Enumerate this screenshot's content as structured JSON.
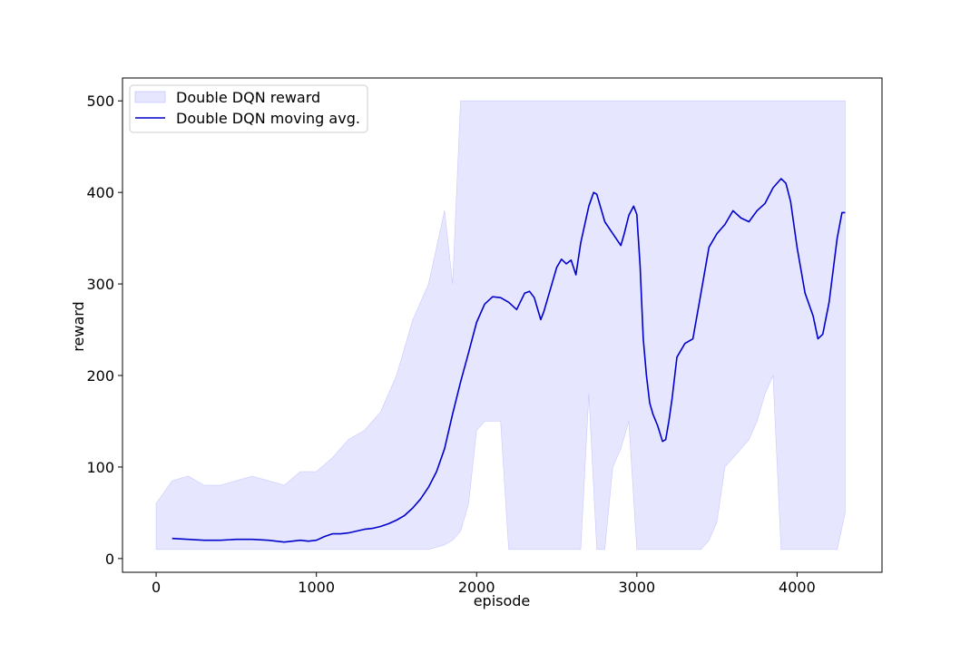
{
  "chart_data": {
    "type": "line",
    "title": "",
    "xlabel": "episode",
    "ylabel": "reward",
    "xlim": [
      -210,
      4530
    ],
    "ylim": [
      -15,
      525
    ],
    "x_ticks": [
      0,
      1000,
      2000,
      3000,
      4000
    ],
    "y_ticks": [
      0,
      100,
      200,
      300,
      400,
      500
    ],
    "grid": false,
    "legend_placement": "top-left",
    "colors": {
      "band": "#e6e6ff",
      "band_edge": "#c8c8ff",
      "line": "#0000cc"
    },
    "series": [
      {
        "name": "Double DQN reward",
        "kind": "band",
        "x": [
          0,
          100,
          200,
          300,
          400,
          500,
          600,
          700,
          800,
          900,
          1000,
          1100,
          1200,
          1300,
          1400,
          1500,
          1600,
          1700,
          1800,
          1850,
          1900,
          1950,
          2000,
          2050,
          2100,
          2150,
          2200,
          2250,
          2300,
          2350,
          2400,
          2450,
          2500,
          2550,
          2600,
          2650,
          2700,
          2750,
          2800,
          2850,
          2900,
          2950,
          3000,
          3050,
          3100,
          3150,
          3200,
          3250,
          3300,
          3350,
          3400,
          3450,
          3500,
          3550,
          3600,
          3650,
          3700,
          3750,
          3800,
          3850,
          3900,
          3950,
          4000,
          4050,
          4100,
          4150,
          4200,
          4250,
          4300
        ],
        "low": [
          10,
          10,
          10,
          10,
          10,
          10,
          10,
          10,
          10,
          10,
          10,
          10,
          10,
          10,
          10,
          10,
          10,
          10,
          15,
          20,
          30,
          60,
          140,
          150,
          150,
          150,
          10,
          10,
          10,
          10,
          10,
          10,
          10,
          10,
          10,
          10,
          180,
          10,
          10,
          100,
          120,
          150,
          10,
          10,
          10,
          10,
          10,
          10,
          10,
          10,
          10,
          20,
          40,
          100,
          110,
          120,
          130,
          150,
          180,
          200,
          10,
          10,
          10,
          10,
          10,
          10,
          10,
          10,
          50
        ],
        "high": [
          60,
          85,
          90,
          80,
          80,
          85,
          90,
          85,
          80,
          95,
          95,
          110,
          130,
          140,
          160,
          200,
          260,
          300,
          380,
          300,
          500,
          500,
          500,
          500,
          500,
          500,
          500,
          500,
          500,
          500,
          500,
          500,
          500,
          500,
          500,
          500,
          500,
          500,
          500,
          500,
          500,
          500,
          500,
          500,
          500,
          500,
          500,
          500,
          500,
          500,
          500,
          500,
          500,
          500,
          500,
          500,
          500,
          500,
          500,
          500,
          500,
          500,
          500,
          500,
          500,
          500,
          500,
          500,
          500
        ]
      },
      {
        "name": "Double DQN moving avg.",
        "kind": "line",
        "x": [
          100,
          200,
          300,
          400,
          500,
          600,
          700,
          800,
          900,
          950,
          1000,
          1050,
          1100,
          1150,
          1200,
          1250,
          1300,
          1350,
          1400,
          1450,
          1500,
          1550,
          1600,
          1650,
          1700,
          1750,
          1800,
          1850,
          1900,
          1950,
          2000,
          2050,
          2100,
          2150,
          2200,
          2250,
          2300,
          2330,
          2360,
          2400,
          2420,
          2450,
          2500,
          2530,
          2560,
          2590,
          2620,
          2650,
          2700,
          2730,
          2750,
          2800,
          2850,
          2900,
          2920,
          2950,
          2980,
          3000,
          3020,
          3040,
          3060,
          3080,
          3100,
          3130,
          3160,
          3180,
          3200,
          3220,
          3250,
          3300,
          3350,
          3400,
          3450,
          3500,
          3550,
          3600,
          3650,
          3700,
          3750,
          3800,
          3850,
          3900,
          3930,
          3960,
          4000,
          4050,
          4100,
          4130,
          4160,
          4200,
          4250,
          4280,
          4300
        ],
        "values": [
          22,
          21,
          20,
          20,
          21,
          21,
          20,
          18,
          20,
          19,
          20,
          24,
          27,
          27,
          28,
          30,
          32,
          33,
          35,
          38,
          42,
          47,
          55,
          65,
          78,
          95,
          120,
          158,
          193,
          225,
          258,
          278,
          286,
          285,
          280,
          272,
          290,
          292,
          285,
          261,
          270,
          288,
          318,
          327,
          322,
          326,
          310,
          345,
          385,
          400,
          398,
          368,
          355,
          342,
          354,
          375,
          385,
          376,
          320,
          240,
          200,
          170,
          158,
          145,
          128,
          130,
          150,
          175,
          220,
          235,
          240,
          290,
          340,
          355,
          365,
          380,
          372,
          368,
          380,
          388,
          405,
          415,
          410,
          390,
          340,
          290,
          265,
          240,
          245,
          280,
          350,
          378,
          378
        ]
      }
    ]
  }
}
